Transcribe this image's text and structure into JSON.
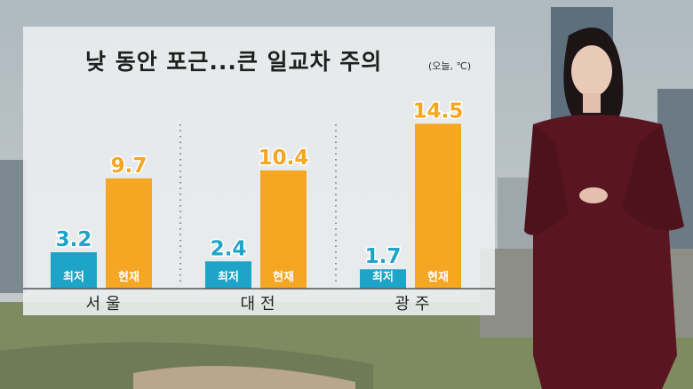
{
  "title": "낮 동안 포근...큰 일교차 주의",
  "unit_note": "(오늘, ℃)",
  "colors": {
    "low": "#1ea4c8",
    "now": "#f5a623",
    "panel": "#eceeef"
  },
  "chart_data": {
    "type": "bar",
    "title": "낮 동안 포근...큰 일교차 주의",
    "unit": "(오늘, ℃)",
    "categories": [
      "서울",
      "대전",
      "광주"
    ],
    "series": [
      {
        "name": "최저",
        "values": [
          3.2,
          2.4,
          1.7
        ],
        "color": "#1ea4c8"
      },
      {
        "name": "현재",
        "values": [
          9.7,
          10.4,
          14.5
        ],
        "color": "#f5a623"
      }
    ],
    "value_labels": {
      "최저": [
        "3.2",
        "2.4",
        "1.7"
      ],
      "현재": [
        "9.7",
        "10.4",
        "14.5"
      ]
    },
    "ylim": [
      0,
      15
    ],
    "grid": false,
    "legend": "none"
  }
}
